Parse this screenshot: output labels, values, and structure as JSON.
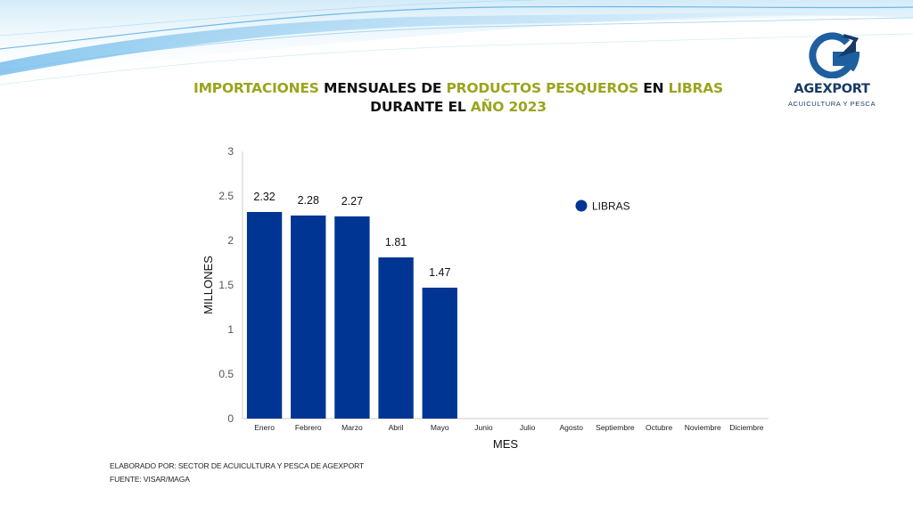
{
  "header": {
    "title_line1": [
      {
        "text": "IMPORTACIONES ",
        "color": "olive"
      },
      {
        "text": " MENSUALES DE ",
        "color": "dark"
      },
      {
        "text": "PRODUCTOS PESQUEROS",
        "color": "olive"
      },
      {
        "text": " EN ",
        "color": "dark"
      },
      {
        "text": "LIBRAS",
        "color": "olive"
      }
    ],
    "title_line2": [
      {
        "text": "DURANTE EL ",
        "color": "dark"
      },
      {
        "text": "AÑO 2023",
        "color": "olive"
      }
    ]
  },
  "logo": {
    "name": "AGEXPORT",
    "subtitle": "ACUICULTURA Y PESCA",
    "icon": "agexport-g-arrow-icon",
    "color_primary": "#1e5fa0",
    "color_dark": "#173a66"
  },
  "colors": {
    "bar": "#003594",
    "olive": "#9aa51d",
    "axis": "#cccccc"
  },
  "chart_data": {
    "type": "bar",
    "categories": [
      "Enero",
      "Febrero",
      "Marzo",
      "Abril",
      "Mayo",
      "Junio",
      "Julio",
      "Agosto",
      "Septiembre",
      "Octubre",
      "Noviembre",
      "Diciembre"
    ],
    "series": [
      {
        "name": "LIBRAS",
        "values": [
          2.32,
          2.28,
          2.27,
          1.81,
          1.47,
          null,
          null,
          null,
          null,
          null,
          null,
          null
        ]
      }
    ],
    "data_labels": [
      "2.32",
      "2.28",
      "2.27",
      "1.81",
      "1.47"
    ],
    "xlabel": "MES",
    "ylabel": "MILLONES",
    "ylim": [
      0,
      3
    ],
    "yticks": [
      "0",
      "0.5",
      "1",
      "1.5",
      "2",
      "2.5",
      "3"
    ],
    "legend": {
      "label": "LIBRAS",
      "placement": "top-right"
    },
    "grid": false
  },
  "footer": {
    "line1": "ELABORADO POR: SECTOR DE ACUICULTURA Y PESCA DE AGEXPORT",
    "line2": "FUENTE:  VISAR/MAGA"
  }
}
